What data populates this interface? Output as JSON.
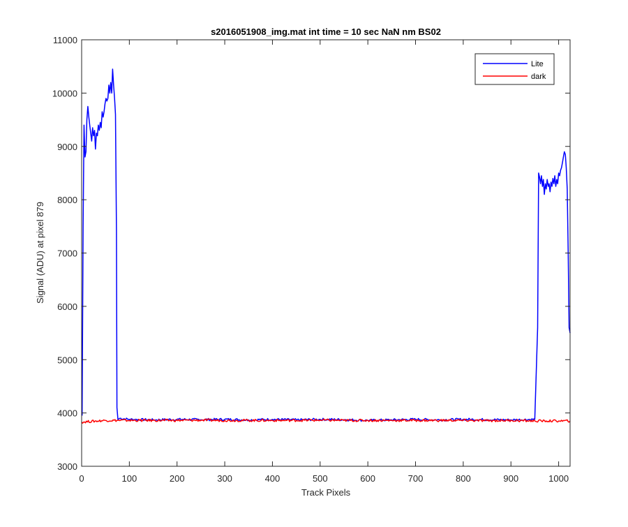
{
  "chart_data": {
    "type": "line",
    "title": "s2016051908_img.mat int time = 10 sec  NaN nm BS02",
    "xlabel": "Track Pixels",
    "ylabel": "Signal (ADU) at pixel 879",
    "xlim": [
      0,
      1024
    ],
    "ylim": [
      3000,
      11000
    ],
    "xticks": [
      0,
      100,
      200,
      300,
      400,
      500,
      600,
      700,
      800,
      900,
      1000
    ],
    "yticks": [
      3000,
      4000,
      5000,
      6000,
      7000,
      8000,
      9000,
      10000,
      11000
    ],
    "xtick_labels": [
      "0",
      "100",
      "200",
      "300",
      "400",
      "500",
      "600",
      "700",
      "800",
      "900",
      "1000"
    ],
    "ytick_labels": [
      "3000",
      "4000",
      "5000",
      "6000",
      "7000",
      "8000",
      "9000",
      "10000",
      "11000"
    ],
    "grid": false,
    "legend_position": "top-right",
    "series": [
      {
        "name": "Lite",
        "color": "#0000ff",
        "x": [
          1,
          3,
          5,
          7,
          9,
          11,
          13,
          15,
          17,
          19,
          21,
          23,
          25,
          27,
          29,
          31,
          33,
          35,
          37,
          39,
          41,
          43,
          45,
          47,
          49,
          51,
          53,
          55,
          57,
          59,
          61,
          63,
          65,
          67,
          69,
          71,
          73,
          74,
          76,
          80,
          100,
          150,
          200,
          250,
          300,
          350,
          400,
          450,
          500,
          550,
          600,
          650,
          700,
          750,
          800,
          850,
          900,
          950,
          956,
          958,
          960,
          962,
          964,
          966,
          968,
          970,
          972,
          974,
          976,
          978,
          980,
          982,
          984,
          986,
          988,
          990,
          992,
          994,
          996,
          998,
          1000,
          1002,
          1004,
          1006,
          1008,
          1010,
          1012,
          1014,
          1016,
          1018,
          1020,
          1022,
          1024
        ],
        "y": [
          3950,
          7500,
          9400,
          8800,
          8900,
          9500,
          9750,
          9550,
          9400,
          9250,
          9100,
          9350,
          9200,
          9300,
          8950,
          9250,
          9200,
          9400,
          9300,
          9450,
          9350,
          9650,
          9550,
          9650,
          9800,
          9900,
          9850,
          9900,
          10150,
          10000,
          10200,
          10000,
          10450,
          10150,
          9900,
          9600,
          7400,
          4100,
          3880,
          3900,
          3880,
          3870,
          3880,
          3875,
          3880,
          3870,
          3880,
          3870,
          3880,
          3875,
          3860,
          3870,
          3880,
          3870,
          3880,
          3875,
          3870,
          3880,
          5600,
          8500,
          8420,
          8300,
          8450,
          8250,
          8380,
          8100,
          8300,
          8200,
          8380,
          8250,
          8300,
          8150,
          8330,
          8250,
          8400,
          8300,
          8450,
          8250,
          8380,
          8300,
          8500,
          8450,
          8550,
          8600,
          8700,
          8800,
          8900,
          8850,
          8600,
          8200,
          7000,
          5600,
          5500
        ]
      },
      {
        "name": "dark",
        "color": "#ff0000",
        "x": [
          0,
          50,
          100,
          150,
          200,
          250,
          300,
          350,
          400,
          450,
          500,
          550,
          600,
          650,
          700,
          750,
          800,
          850,
          900,
          950,
          1000,
          1024
        ],
        "y": [
          3830,
          3860,
          3860,
          3860,
          3860,
          3865,
          3860,
          3860,
          3860,
          3860,
          3865,
          3860,
          3860,
          3860,
          3860,
          3860,
          3860,
          3855,
          3860,
          3850,
          3850,
          3850
        ]
      }
    ]
  }
}
